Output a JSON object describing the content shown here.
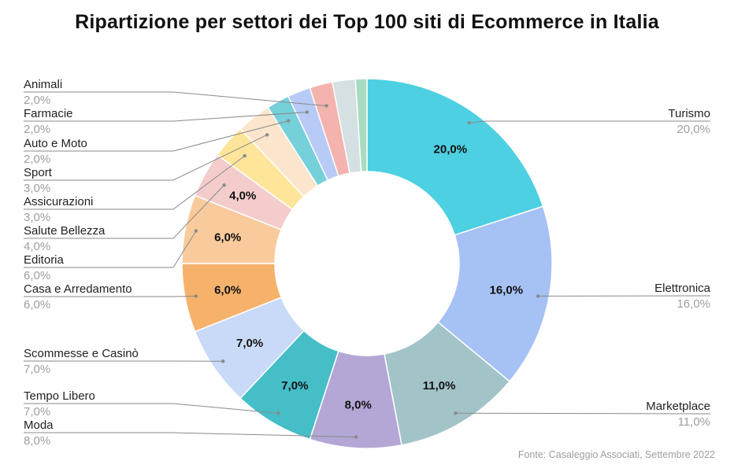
{
  "chart_data": {
    "type": "pie",
    "title": "Ripartizione per settori dei Top 100 siti di Ecommerce in Italia",
    "donut": true,
    "unit": "%",
    "slices": [
      {
        "label": "Turismo",
        "value": 20.0,
        "display": "20,0%",
        "color": "#4dd0e1",
        "inner_label": "20,0%"
      },
      {
        "label": "Elettronica",
        "value": 16.0,
        "display": "16,0%",
        "color": "#a6c1f4",
        "inner_label": "16,0%"
      },
      {
        "label": "Marketplace",
        "value": 11.0,
        "display": "11,0%",
        "color": "#a2c4c9",
        "inner_label": "11,0%"
      },
      {
        "label": "Moda",
        "value": 8.0,
        "display": "8,0%",
        "color": "#b4a7d6",
        "inner_label": "8,0%"
      },
      {
        "label": "Tempo Libero",
        "value": 7.0,
        "display": "7,0%",
        "color": "#45bec8",
        "inner_label": "7,0%"
      },
      {
        "label": "Scommesse e Casinò",
        "value": 7.0,
        "display": "7,0%",
        "color": "#c9daf8",
        "inner_label": "7,0%"
      },
      {
        "label": "Casa e Arredamento",
        "value": 6.0,
        "display": "6,0%",
        "color": "#f6b26b",
        "inner_label": "6,0%"
      },
      {
        "label": "Editoria",
        "value": 6.0,
        "display": "6,0%",
        "color": "#f9cb9c",
        "inner_label": "6,0%"
      },
      {
        "label": "Salute Bellezza",
        "value": 4.0,
        "display": "4,0%",
        "color": "#f4cccc",
        "inner_label": "4,0%"
      },
      {
        "label": "Assicurazioni",
        "value": 3.0,
        "display": "3,0%",
        "color": "#ffe599",
        "inner_label": ""
      },
      {
        "label": "Sport",
        "value": 3.0,
        "display": "3,0%",
        "color": "#fce5cd",
        "inner_label": ""
      },
      {
        "label": "Auto e Moto",
        "value": 2.0,
        "display": "2,0%",
        "color": "#76d0d9",
        "inner_label": ""
      },
      {
        "label": "Farmacie",
        "value": 2.0,
        "display": "2,0%",
        "color": "#b8cbf6",
        "inner_label": ""
      },
      {
        "label": "Animali",
        "value": 2.0,
        "display": "2,0%",
        "color": "#f4b3ad",
        "inner_label": ""
      },
      {
        "label": "",
        "value": 2.0,
        "display": "",
        "color": "#d5e0e2",
        "inner_label": ""
      },
      {
        "label": "",
        "value": 1.0,
        "display": "",
        "color": "#a8dcc0",
        "inner_label": ""
      }
    ]
  },
  "source": "Fonte: Casaleggio Associati, Settembre 2022"
}
